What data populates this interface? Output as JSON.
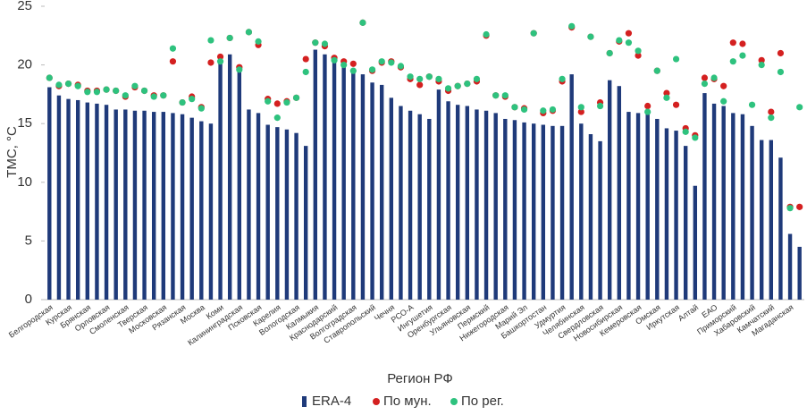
{
  "chart_data": {
    "type": "bar",
    "y_label": "ТМС, °C",
    "x_label": "Регион РФ",
    "categories": [
      "Белгородская",
      null,
      "Курская",
      null,
      "Брянская",
      null,
      "Орловская",
      null,
      "Смоленская",
      null,
      "Тверская",
      null,
      "Московская",
      null,
      "Рязанская",
      null,
      "Москва",
      null,
      "Коми",
      null,
      "Калининградская",
      null,
      "Псковская",
      null,
      "Карелия",
      null,
      "Вологодская",
      null,
      "Калмыкия",
      null,
      "Краснодарский",
      null,
      "Волгоградская",
      null,
      "Ставропольский",
      null,
      "Чечня",
      null,
      "РСО-А",
      null,
      "Ингушетия",
      null,
      "Оренбургская",
      null,
      "Ульяновская",
      null,
      "Пермский",
      null,
      "Нижегородская",
      null,
      "Марий Эл",
      null,
      "Башкортостан",
      null,
      "Удмуртия",
      null,
      "Челябинская",
      null,
      "Свердловская",
      null,
      "Новосибирская",
      null,
      "Кемеровская",
      null,
      "Омская",
      null,
      "Иркутская",
      null,
      "Алтай",
      null,
      "ЕАО",
      null,
      "Приморский",
      null,
      "Хабаровский",
      null,
      "Камчатский",
      null,
      "Магаданская",
      null
    ],
    "series": [
      {
        "name": "ERA-4",
        "type": "bar",
        "color": "#1f3a7a",
        "values": [
          18.1,
          17.4,
          17.1,
          17.0,
          16.8,
          16.7,
          16.6,
          16.2,
          16.2,
          16.1,
          16.1,
          16.0,
          16.0,
          15.9,
          15.8,
          15.5,
          15.2,
          15.0,
          20.5,
          20.9,
          19.8,
          16.2,
          15.9,
          14.9,
          14.7,
          14.5,
          14.2,
          13.1,
          21.3,
          20.9,
          20.4,
          19.8,
          19.4,
          19.2,
          18.5,
          18.3,
          17.2,
          16.5,
          16.1,
          15.8,
          15.4,
          17.9,
          16.9,
          16.6,
          16.5,
          16.2,
          16.1,
          15.9,
          15.4,
          15.3,
          15.1,
          15.0,
          14.9,
          14.8,
          14.8,
          19.2,
          15.0,
          14.1,
          13.5,
          18.7,
          18.2,
          16.0,
          15.9,
          15.9,
          15.4,
          14.6,
          14.4,
          13.1,
          9.7,
          17.6,
          16.7,
          16.5,
          15.9,
          15.8,
          14.8,
          13.6,
          13.6,
          12.1,
          5.6,
          4.5
        ]
      },
      {
        "name": "По мун.",
        "type": "scatter",
        "color": "#d42020",
        "values": [
          18.9,
          18.2,
          18.4,
          18.3,
          17.8,
          17.8,
          17.9,
          17.8,
          17.3,
          18.1,
          17.8,
          17.4,
          17.4,
          20.3,
          16.8,
          17.3,
          16.4,
          20.2,
          20.7,
          22.3,
          19.8,
          22.8,
          21.7,
          17.1,
          16.7,
          16.9,
          17.2,
          20.5,
          21.9,
          21.6,
          20.6,
          20.3,
          20.1,
          23.6,
          19.5,
          20.2,
          20.3,
          19.8,
          18.8,
          18.3,
          19.0,
          18.6,
          17.8,
          18.2,
          18.4,
          18.6,
          22.5,
          17.4,
          17.3,
          16.4,
          16.3,
          22.7,
          15.9,
          16.1,
          18.6,
          23.2,
          16.0,
          22.4,
          16.8,
          21.0,
          22.0,
          22.7,
          20.8,
          16.5,
          19.5,
          17.6,
          16.6,
          14.6,
          14.0,
          18.9,
          18.8,
          18.2,
          21.9,
          21.8,
          null,
          20.4,
          16.0,
          21.0,
          7.9,
          7.9
        ]
      },
      {
        "name": "По рег.",
        "type": "scatter",
        "color": "#2ec27e",
        "values": [
          18.9,
          18.3,
          18.4,
          18.2,
          17.7,
          17.7,
          17.9,
          17.8,
          17.4,
          18.2,
          17.8,
          17.3,
          17.4,
          21.4,
          16.8,
          17.1,
          16.3,
          22.1,
          20.3,
          22.3,
          19.6,
          22.8,
          22.0,
          16.9,
          15.5,
          16.8,
          17.2,
          19.4,
          21.9,
          21.8,
          20.4,
          20.0,
          19.5,
          23.6,
          19.6,
          20.3,
          20.2,
          19.9,
          19.0,
          18.8,
          19.0,
          18.8,
          18.0,
          18.2,
          18.4,
          18.8,
          22.6,
          17.4,
          17.4,
          16.4,
          16.2,
          22.7,
          16.1,
          16.2,
          18.8,
          23.3,
          16.4,
          22.4,
          16.5,
          21.0,
          22.1,
          21.9,
          21.2,
          16.0,
          19.5,
          17.2,
          20.5,
          14.3,
          13.8,
          18.4,
          18.9,
          16.9,
          20.3,
          20.8,
          16.6,
          20.0,
          15.5,
          19.4,
          7.8,
          16.4
        ]
      }
    ],
    "ylim": [
      0,
      25
    ],
    "yticks": [
      0,
      5,
      10,
      15,
      20,
      25
    ]
  }
}
